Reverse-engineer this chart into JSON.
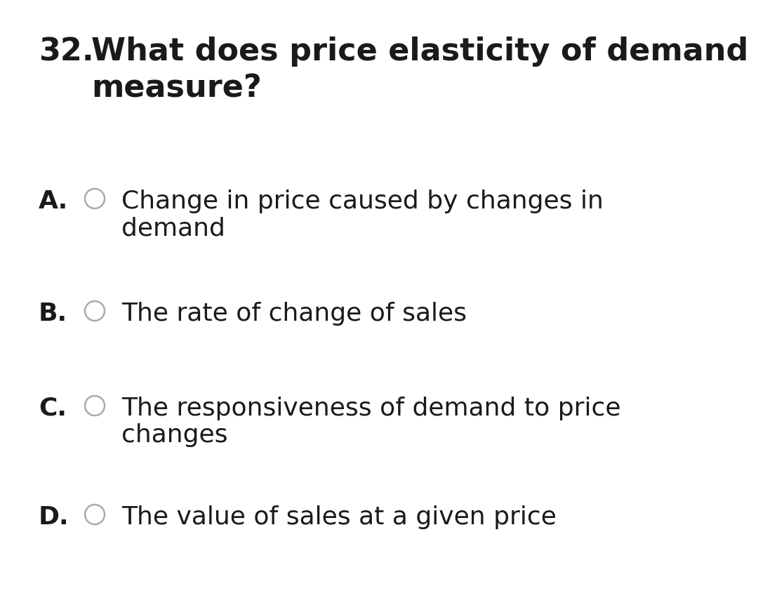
{
  "background_color": "#ffffff",
  "question_number": "32.",
  "question_line1": "What does price elasticity of demand",
  "question_line2": "measure?",
  "options": [
    {
      "label": "A.",
      "text_line1": "Change in price caused by changes in",
      "text_line2": "demand"
    },
    {
      "label": "B.",
      "text_line1": "The rate of change of sales",
      "text_line2": ""
    },
    {
      "label": "C.",
      "text_line1": "The responsiveness of demand to price",
      "text_line2": "changes"
    },
    {
      "label": "D.",
      "text_line1": "The value of sales at a given price",
      "text_line2": ""
    }
  ],
  "text_color": "#1a1a1a",
  "circle_edge_color": "#aaaaaa",
  "font_size_question": 32,
  "font_size_options": 26,
  "label_font_weight": "bold",
  "option_font_weight": "normal",
  "question_font_weight": "bold"
}
